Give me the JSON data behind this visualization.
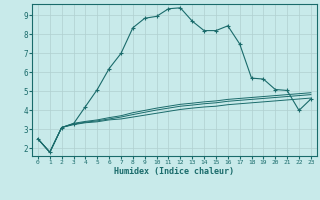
{
  "xlabel": "Humidex (Indice chaleur)",
  "background_color": "#c8eaea",
  "grid_color": "#b0d0d0",
  "line_color": "#1a6b6b",
  "xlim": [
    -0.5,
    23.5
  ],
  "ylim": [
    1.6,
    9.6
  ],
  "xticks": [
    0,
    1,
    2,
    3,
    4,
    5,
    6,
    7,
    8,
    9,
    10,
    11,
    12,
    13,
    14,
    15,
    16,
    17,
    18,
    19,
    20,
    21,
    22,
    23
  ],
  "yticks": [
    2,
    3,
    4,
    5,
    6,
    7,
    8,
    9
  ],
  "series": [
    {
      "x": [
        0,
        1,
        2,
        3,
        4,
        5,
        6,
        7,
        8,
        9,
        10,
        11,
        12,
        13,
        14,
        15,
        16,
        17,
        18,
        19,
        20,
        21,
        22,
        23
      ],
      "y": [
        2.5,
        1.8,
        3.1,
        3.3,
        4.2,
        5.1,
        6.2,
        7.0,
        8.35,
        8.85,
        8.95,
        9.35,
        9.4,
        8.7,
        8.2,
        8.2,
        8.45,
        7.5,
        5.7,
        5.65,
        5.1,
        5.05,
        4.0,
        4.6
      ],
      "marker": true
    },
    {
      "x": [
        0,
        1,
        2,
        3,
        4,
        5,
        6,
        7,
        8,
        9,
        10,
        11,
        12,
        13,
        14,
        15,
        16,
        17,
        18,
        19,
        20,
        21,
        22,
        23
      ],
      "y": [
        2.5,
        1.8,
        3.1,
        3.25,
        3.35,
        3.4,
        3.5,
        3.55,
        3.65,
        3.75,
        3.85,
        3.95,
        4.05,
        4.12,
        4.18,
        4.22,
        4.3,
        4.35,
        4.4,
        4.45,
        4.5,
        4.55,
        4.6,
        4.65
      ],
      "marker": false
    },
    {
      "x": [
        0,
        1,
        2,
        3,
        4,
        5,
        6,
        7,
        8,
        9,
        10,
        11,
        12,
        13,
        14,
        15,
        16,
        17,
        18,
        19,
        20,
        21,
        22,
        23
      ],
      "y": [
        2.5,
        1.8,
        3.1,
        3.28,
        3.38,
        3.45,
        3.55,
        3.65,
        3.78,
        3.9,
        4.02,
        4.12,
        4.22,
        4.28,
        4.35,
        4.4,
        4.48,
        4.53,
        4.58,
        4.63,
        4.68,
        4.73,
        4.78,
        4.83
      ],
      "marker": false
    },
    {
      "x": [
        0,
        1,
        2,
        3,
        4,
        5,
        6,
        7,
        8,
        9,
        10,
        11,
        12,
        13,
        14,
        15,
        16,
        17,
        18,
        19,
        20,
        21,
        22,
        23
      ],
      "y": [
        2.5,
        1.8,
        3.1,
        3.32,
        3.42,
        3.5,
        3.62,
        3.72,
        3.88,
        4.0,
        4.12,
        4.22,
        4.32,
        4.38,
        4.45,
        4.5,
        4.58,
        4.63,
        4.68,
        4.73,
        4.78,
        4.83,
        4.88,
        4.93
      ],
      "marker": false
    }
  ]
}
